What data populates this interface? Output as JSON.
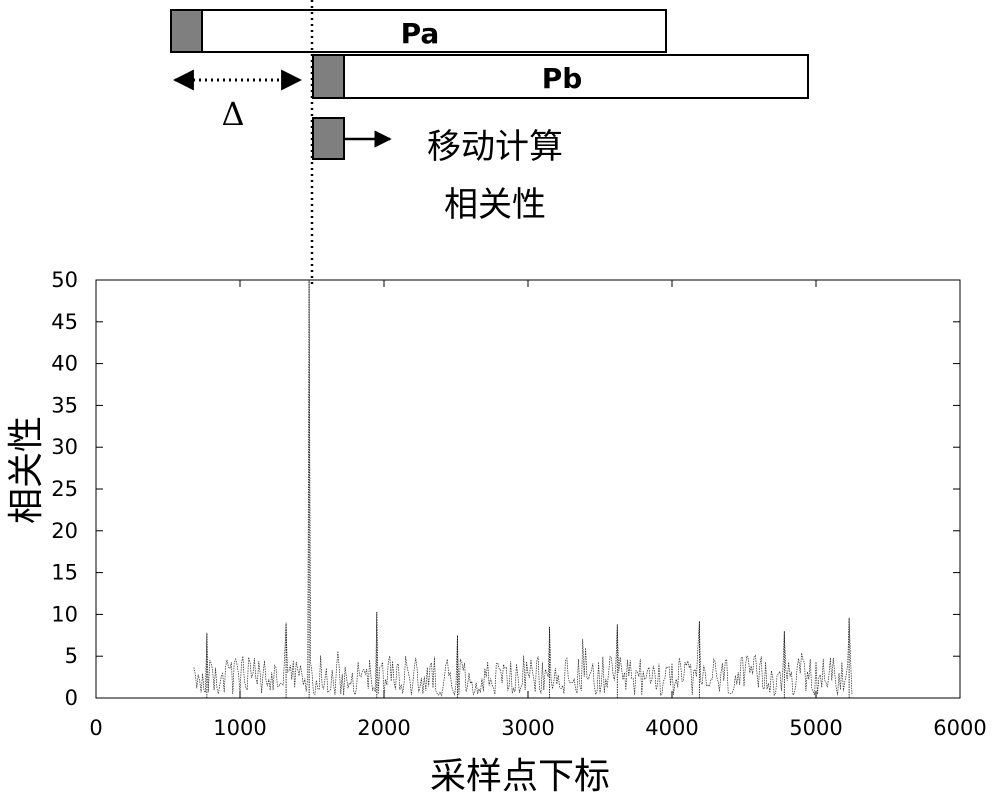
{
  "diagram": {
    "segment_a": {
      "label": "Pa"
    },
    "segment_b": {
      "label": "Pb"
    },
    "shift_label": "Δ",
    "note_line1": "移动计算",
    "note_line2": "相关性",
    "colors": {
      "window": "#7f7f7f",
      "bar": "#ffffff",
      "stroke": "#000000"
    }
  },
  "chart_data": {
    "type": "line",
    "xlabel": "采样点下标",
    "ylabel": "相关性",
    "xlim": [
      0,
      6000
    ],
    "ylim": [
      0,
      50
    ],
    "xticks": [
      0,
      1000,
      2000,
      3000,
      4000,
      5000,
      6000
    ],
    "yticks": [
      0,
      5,
      10,
      15,
      20,
      25,
      30,
      35,
      40,
      45,
      50
    ],
    "x_range": [
      680,
      5250
    ],
    "baseline_mean": 2.5,
    "noise_max": 10.3,
    "spikes": [
      {
        "x": 770,
        "y": 7.8
      },
      {
        "x": 1320,
        "y": 9.0
      },
      {
        "x": 1480,
        "y": 50
      },
      {
        "x": 1950,
        "y": 10.3
      },
      {
        "x": 2510,
        "y": 7.5
      },
      {
        "x": 3150,
        "y": 8.5
      },
      {
        "x": 3620,
        "y": 8.8
      },
      {
        "x": 4190,
        "y": 9.2
      },
      {
        "x": 4780,
        "y": 8.0
      },
      {
        "x": 5230,
        "y": 9.6
      }
    ],
    "grid": false,
    "line_color": "#000000"
  }
}
